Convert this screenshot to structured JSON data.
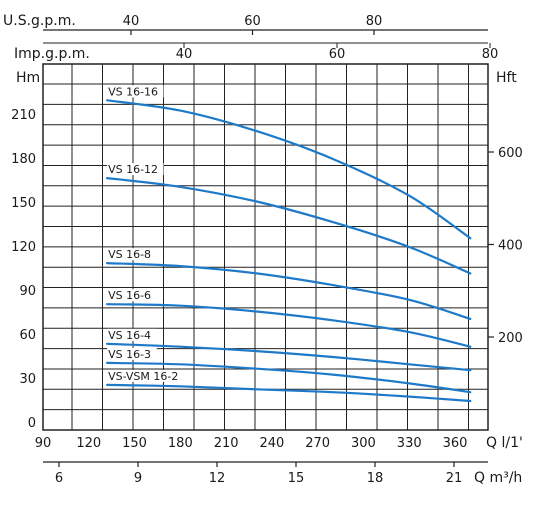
{
  "chart_data": {
    "type": "line",
    "grid": true,
    "axes": {
      "us_gpm": {
        "label": "U.S.g.p.m.",
        "ticks": [
          "40",
          "60",
          "80"
        ],
        "values": [
          40,
          60,
          80
        ]
      },
      "imp_gpm": {
        "label": "Imp.g.p.m.",
        "ticks": [
          "40",
          "60",
          "80"
        ],
        "values": [
          40,
          60,
          80
        ]
      },
      "head_m": {
        "label": "Hm",
        "ticks": [
          "0",
          "30",
          "60",
          "90",
          "120",
          "150",
          "180",
          "210"
        ],
        "values": [
          0,
          30,
          60,
          90,
          120,
          150,
          180,
          210
        ],
        "range": [
          0,
          240
        ]
      },
      "head_ft": {
        "label": "Hft",
        "ticks": [
          "200",
          "400",
          "600"
        ],
        "values": [
          200,
          400,
          600
        ]
      },
      "flow_lpm": {
        "label": "Q l/1'",
        "ticks": [
          "90",
          "120",
          "150",
          "180",
          "210",
          "240",
          "270",
          "300",
          "330",
          "360"
        ],
        "values": [
          90,
          120,
          150,
          180,
          210,
          240,
          270,
          300,
          330,
          360
        ],
        "range": [
          90,
          375
        ]
      },
      "flow_m3h": {
        "label": "Q m³/h",
        "ticks": [
          "6",
          "9",
          "12",
          "15",
          "18",
          "21"
        ],
        "values": [
          6,
          9,
          12,
          15,
          18,
          21
        ]
      }
    },
    "series": [
      {
        "name": "VS 16-16",
        "color": "#1e7ac8",
        "x": [
          132,
          180,
          230,
          280,
          330,
          370
        ],
        "y": [
          220,
          213,
          199,
          180,
          155,
          126
        ]
      },
      {
        "name": "VS 16-12",
        "color": "#1e7ac8",
        "x": [
          132,
          180,
          230,
          280,
          330,
          370
        ],
        "y": [
          167,
          161,
          151,
          137,
          120,
          102
        ]
      },
      {
        "name": "VS 16-8",
        "color": "#1e7ac8",
        "x": [
          132,
          180,
          230,
          280,
          330,
          370
        ],
        "y": [
          109,
          107,
          102,
          94,
          84,
          71
        ]
      },
      {
        "name": "VS 16-6",
        "color": "#1e7ac8",
        "x": [
          132,
          180,
          230,
          280,
          330,
          370
        ],
        "y": [
          81,
          80,
          76,
          70,
          62,
          52
        ]
      },
      {
        "name": "VS 16-4",
        "color": "#1e7ac8",
        "x": [
          132,
          180,
          230,
          280,
          330,
          370
        ],
        "y": [
          54,
          52,
          49,
          45,
          40,
          36
        ]
      },
      {
        "name": "VS 16-3",
        "color": "#1e7ac8",
        "x": [
          132,
          180,
          230,
          280,
          330,
          370
        ],
        "y": [
          41,
          40,
          37,
          33,
          27,
          21
        ]
      },
      {
        "name": "VS-VSM 16-2",
        "color": "#1e7ac8",
        "x": [
          132,
          180,
          230,
          280,
          330,
          370
        ],
        "y": [
          26,
          25,
          23,
          21,
          18,
          15
        ]
      }
    ]
  }
}
